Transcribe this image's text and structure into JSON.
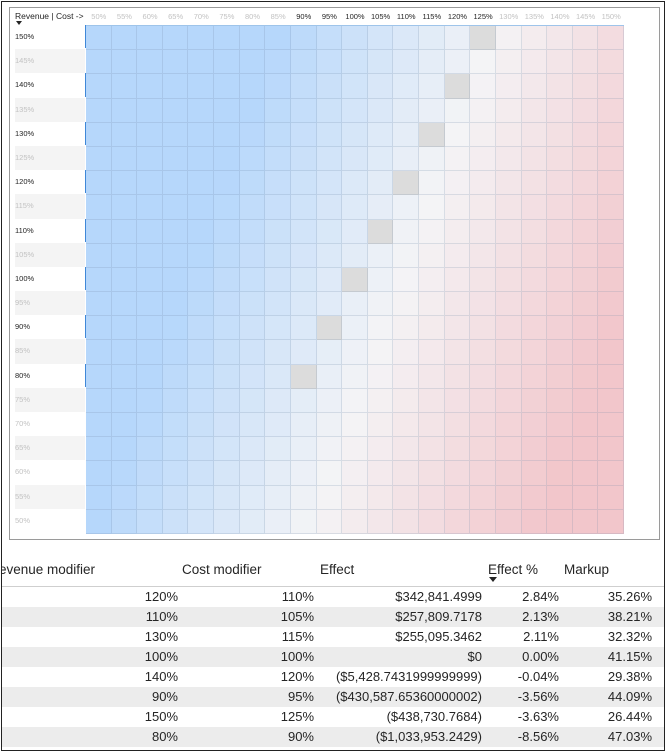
{
  "matrix": {
    "corner_label": "Revenue | Cost ->",
    "columns": [
      "50%",
      "55%",
      "60%",
      "65%",
      "70%",
      "75%",
      "80%",
      "85%",
      "90%",
      "95%",
      "100%",
      "105%",
      "110%",
      "115%",
      "120%",
      "125%",
      "130%",
      "135%",
      "140%",
      "145%",
      "150%"
    ],
    "highlighted_columns": [
      "90%",
      "95%",
      "100%",
      "105%",
      "110%",
      "115%",
      "120%",
      "125%"
    ],
    "rows": [
      "150%",
      "145%",
      "140%",
      "135%",
      "130%",
      "125%",
      "120%",
      "115%",
      "110%",
      "105%",
      "100%",
      "95%",
      "90%",
      "85%",
      "80%",
      "75%",
      "70%",
      "65%",
      "60%",
      "55%",
      "50%"
    ],
    "highlighted_rows": [
      "150%",
      "140%",
      "130%",
      "120%",
      "110%",
      "100%",
      "90%",
      "80%"
    ],
    "colors": {
      "positive": "#b6d7fb",
      "neutral": "#f4f4f6",
      "negative": "#f2c6cb",
      "diagonal": "#dcdcdc",
      "row_marker": "#3f88d8"
    }
  },
  "table": {
    "headers": [
      "evenue modifier",
      "Cost modifier",
      "Effect",
      "Effect %",
      "Markup"
    ],
    "sorted_by": "Effect %",
    "rows": [
      [
        "120%",
        "110%",
        "$342,841.4999",
        "2.84%",
        "35.26%"
      ],
      [
        "110%",
        "105%",
        "$257,809.7178",
        "2.13%",
        "38.21%"
      ],
      [
        "130%",
        "115%",
        "$255,095.3462",
        "2.11%",
        "32.32%"
      ],
      [
        "100%",
        "100%",
        "$0",
        "0.00%",
        "41.15%"
      ],
      [
        "140%",
        "120%",
        "($5,428.7431999999999)",
        "-0.04%",
        "29.38%"
      ],
      [
        "90%",
        "95%",
        "($430,587.65360000002)",
        "-3.56%",
        "44.09%"
      ],
      [
        "150%",
        "125%",
        "($438,730.7684)",
        "-3.63%",
        "26.44%"
      ],
      [
        "80%",
        "90%",
        "($1,033,953.2429)",
        "-8.56%",
        "47.03%"
      ]
    ]
  }
}
